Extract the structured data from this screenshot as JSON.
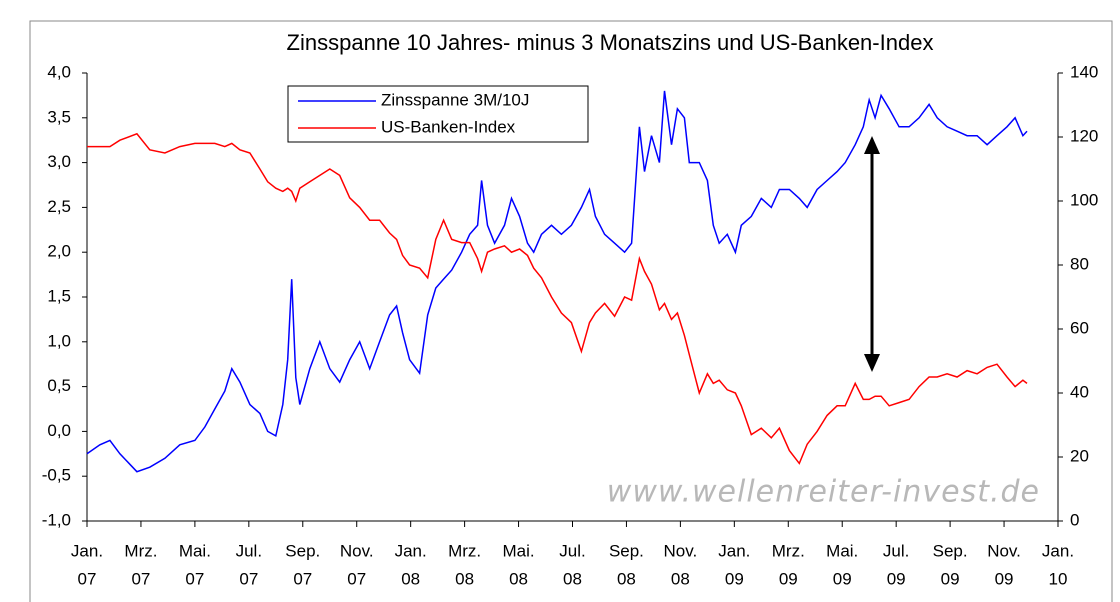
{
  "chart_data": {
    "type": "line",
    "title": "Zinsspanne 10 Jahres- minus 3 Monatszins und US-Banken-Index",
    "watermark": "www.wellenreiter-invest.de",
    "x": [
      0,
      0.48,
      0.85,
      1.22,
      1.85,
      2.33,
      2.89,
      3.44,
      4.0,
      4.37,
      4.74,
      5.11,
      5.37,
      5.67,
      6.04,
      6.41,
      6.7,
      7.0,
      7.26,
      7.44,
      7.59,
      7.74,
      7.89,
      8.26,
      8.63,
      9.0,
      9.37,
      9.74,
      10.11,
      10.48,
      10.85,
      11.22,
      11.48,
      11.7,
      11.96,
      12.33,
      12.63,
      12.93,
      13.22,
      13.52,
      13.89,
      14.19,
      14.48,
      14.63,
      14.85,
      15.11,
      15.48,
      15.74,
      16.04,
      16.33,
      16.56,
      16.85,
      17.22,
      17.59,
      17.96,
      18.33,
      18.63,
      18.85,
      19.19,
      19.56,
      19.93,
      20.19,
      20.48,
      20.67,
      20.93,
      21.22,
      21.41,
      21.67,
      21.89,
      22.15,
      22.33,
      22.7,
      23.0,
      23.22,
      23.44,
      23.74,
      24.04,
      24.26,
      24.63,
      25.0,
      25.37,
      25.67,
      26.04,
      26.41,
      26.7,
      27.07,
      27.44,
      27.81,
      28.11,
      28.48,
      28.78,
      29.0,
      29.22,
      29.44,
      29.74,
      30.11,
      30.48,
      30.85,
      31.22,
      31.52,
      31.89,
      32.26,
      32.63,
      33.0,
      33.37,
      33.74,
      34.11,
      34.41,
      34.7,
      34.85
    ],
    "series": [
      {
        "name": "Zinsspanne 3M/10J",
        "color": "#0000ff",
        "axis": "y",
        "values": [
          -0.25,
          -0.15,
          -0.1,
          -0.25,
          -0.45,
          -0.4,
          -0.3,
          -0.15,
          -0.1,
          0.05,
          0.25,
          0.45,
          0.7,
          0.55,
          0.3,
          0.2,
          0.0,
          -0.05,
          0.3,
          0.8,
          1.7,
          0.6,
          0.3,
          0.7,
          1.0,
          0.7,
          0.55,
          0.8,
          1.0,
          0.7,
          1.0,
          1.3,
          1.4,
          1.1,
          0.8,
          0.65,
          1.3,
          1.6,
          1.7,
          1.8,
          2.0,
          2.2,
          2.3,
          2.8,
          2.3,
          2.1,
          2.3,
          2.6,
          2.4,
          2.1,
          2.0,
          2.2,
          2.3,
          2.2,
          2.3,
          2.5,
          2.7,
          2.4,
          2.2,
          2.1,
          2.0,
          2.1,
          3.4,
          2.9,
          3.3,
          3.0,
          3.8,
          3.2,
          3.6,
          3.5,
          3.0,
          3.0,
          2.8,
          2.3,
          2.1,
          2.2,
          2.0,
          2.3,
          2.4,
          2.6,
          2.5,
          2.7,
          2.7,
          2.6,
          2.5,
          2.7,
          2.8,
          2.9,
          3.0,
          3.2,
          3.4,
          3.7,
          3.5,
          3.75,
          3.6,
          3.4,
          3.4,
          3.5,
          3.65,
          3.5,
          3.4,
          3.35,
          3.3,
          3.3,
          3.2,
          3.3,
          3.4,
          3.5,
          3.3,
          3.35
        ]
      },
      {
        "name": "US-Banken-Index",
        "color": "#ff0000",
        "axis": "y2",
        "values": [
          117,
          117,
          117,
          119,
          121,
          116,
          115,
          117,
          118,
          118,
          118,
          117,
          118,
          116,
          115,
          110,
          106,
          104,
          103,
          104,
          103,
          100,
          104,
          106,
          108,
          110,
          108,
          101,
          98,
          94,
          94,
          90,
          88,
          83,
          80,
          79,
          76,
          88,
          94,
          88,
          87,
          87,
          82,
          78,
          84,
          85,
          86,
          84,
          85,
          83,
          79,
          76,
          70,
          65,
          62,
          53,
          62,
          65,
          68,
          64,
          70,
          69,
          82,
          78,
          74,
          66,
          68,
          63,
          65,
          58,
          52,
          40,
          46,
          43,
          44,
          41,
          40,
          36,
          27,
          29,
          26,
          29,
          22,
          18,
          24,
          28,
          33,
          36,
          36,
          43,
          38,
          38,
          39,
          39,
          36,
          37,
          38,
          42,
          45,
          45,
          46,
          45,
          47,
          46,
          48,
          49,
          45,
          42,
          44,
          43
        ]
      }
    ],
    "xlim": [
      0,
      36
    ],
    "xticks": [
      {
        "value": 0,
        "label": [
          "Jan.",
          "07"
        ]
      },
      {
        "value": 2,
        "label": [
          "Mrz.",
          "07"
        ]
      },
      {
        "value": 4,
        "label": [
          "Mai.",
          "07"
        ]
      },
      {
        "value": 6,
        "label": [
          "Jul.",
          "07"
        ]
      },
      {
        "value": 8,
        "label": [
          "Sep.",
          "07"
        ]
      },
      {
        "value": 10,
        "label": [
          "Nov.",
          "07"
        ]
      },
      {
        "value": 12,
        "label": [
          "Jan.",
          "08"
        ]
      },
      {
        "value": 14,
        "label": [
          "Mrz.",
          "08"
        ]
      },
      {
        "value": 16,
        "label": [
          "Mai.",
          "08"
        ]
      },
      {
        "value": 18,
        "label": [
          "Jul.",
          "08"
        ]
      },
      {
        "value": 20,
        "label": [
          "Sep.",
          "08"
        ]
      },
      {
        "value": 22,
        "label": [
          "Nov.",
          "08"
        ]
      },
      {
        "value": 24,
        "label": [
          "Jan.",
          "09"
        ]
      },
      {
        "value": 26,
        "label": [
          "Mrz.",
          "09"
        ]
      },
      {
        "value": 28,
        "label": [
          "Mai.",
          "09"
        ]
      },
      {
        "value": 30,
        "label": [
          "Jul.",
          "09"
        ]
      },
      {
        "value": 32,
        "label": [
          "Sep.",
          "09"
        ]
      },
      {
        "value": 34,
        "label": [
          "Nov.",
          "09"
        ]
      },
      {
        "value": 36,
        "label": [
          "Jan.",
          "10"
        ]
      }
    ],
    "ylim": [
      -1,
      4
    ],
    "yticks": [
      {
        "value": -1,
        "label": "-1,0"
      },
      {
        "value": -0.5,
        "label": "-0,5"
      },
      {
        "value": 0,
        "label": "0,0"
      },
      {
        "value": 0.5,
        "label": "0,5"
      },
      {
        "value": 1,
        "label": "1,0"
      },
      {
        "value": 1.5,
        "label": "1,5"
      },
      {
        "value": 2,
        "label": "2,0"
      },
      {
        "value": 2.5,
        "label": "2,5"
      },
      {
        "value": 3,
        "label": "3,0"
      },
      {
        "value": 3.5,
        "label": "3,5"
      },
      {
        "value": 4,
        "label": "4,0"
      }
    ],
    "y2lim": [
      0,
      140
    ],
    "y2ticks": [
      0,
      20,
      40,
      60,
      80,
      100,
      120,
      140
    ],
    "grid": false
  }
}
